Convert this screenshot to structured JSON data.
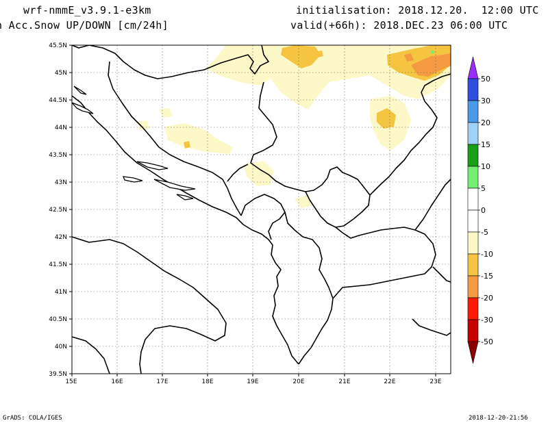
{
  "header": {
    "model": "wrf-nmmE_v3.9.1-e3km",
    "variable": "n Acc.Snow UP/DOWN [cm/24h]",
    "initialisation": "initialisation: 2018.12.20.  12:00 UTC",
    "valid": "valid(+66h): 2018.DEC.23 06:00 UTC"
  },
  "footer": {
    "left": "GrADS: COLA/IGES",
    "right": "2018-12-20-21:56"
  },
  "map": {
    "lat_labels": [
      "45.5N",
      "45N",
      "44.5N",
      "44N",
      "43.5N",
      "43N",
      "42.5N",
      "42N",
      "41.5N",
      "41N",
      "40.5N",
      "40N",
      "39.5N"
    ],
    "lon_labels": [
      "15E",
      "16E",
      "17E",
      "18E",
      "19E",
      "20E",
      "21E",
      "22E",
      "23E"
    ],
    "grid": true
  },
  "colorbar": {
    "labels": [
      "50",
      "30",
      "20",
      "15",
      "10",
      "5",
      "0",
      "-5",
      "-10",
      "-15",
      "-20",
      "-30",
      "-50"
    ],
    "colors": [
      "#9b2dff",
      "#2f4fe0",
      "#4a9ae8",
      "#9fd0f5",
      "#17a017",
      "#72f072",
      "#ffffff",
      "#ffffff",
      "#fdf8c8",
      "#f5c440",
      "#f49a40",
      "#ff1a00",
      "#c40000",
      "#8b0000"
    ]
  }
}
